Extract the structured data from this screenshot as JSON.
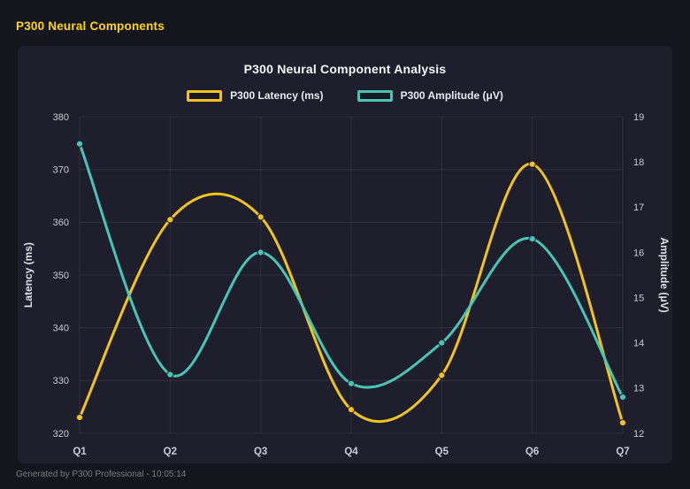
{
  "page": {
    "header_title": "P300 Neural Components",
    "footer": "Generated by P300 Professional - 10:05:14"
  },
  "chart_data": {
    "type": "line",
    "title": "P300 Neural Component Analysis",
    "categories": [
      "Q1",
      "Q2",
      "Q3",
      "Q4",
      "Q5",
      "Q6",
      "Q7"
    ],
    "series": [
      {
        "name": "P300 Latency (ms)",
        "axis": "left",
        "color": "#f2c41d",
        "values": [
          323,
          360.5,
          361,
          324.5,
          331,
          371,
          322
        ]
      },
      {
        "name": "P300 Amplitude (μV)",
        "axis": "right",
        "color": "#49c5b6",
        "values": [
          18.4,
          13.3,
          16.0,
          13.1,
          14.0,
          16.3,
          12.8
        ]
      }
    ],
    "left_axis": {
      "label": "Latency (ms)",
      "min": 320,
      "max": 380,
      "ticks": [
        320,
        330,
        340,
        350,
        360,
        370,
        380
      ]
    },
    "right_axis": {
      "label": "Amplitude (μV)",
      "min": 12,
      "max": 19,
      "ticks": [
        12,
        13,
        14,
        15,
        16,
        17,
        18,
        19
      ]
    },
    "grid": true,
    "legend_position": "top",
    "colors": {
      "page_background": "#15151d",
      "card_background": "#1e1e2c",
      "header_accent": "#ffd60a",
      "grid_line": "rgba(255,255,255,0.08)",
      "tick_text": "#c9ccd6",
      "axis_title_text": "#dfe1e8"
    }
  }
}
